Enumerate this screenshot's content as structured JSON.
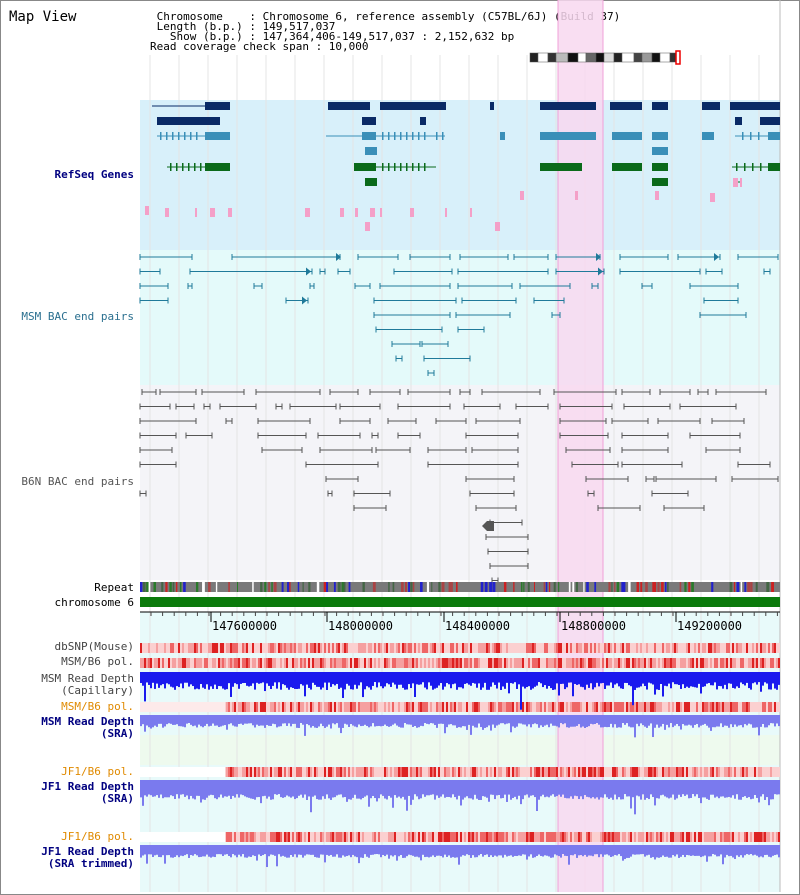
{
  "header": {
    "title": "Map View",
    "info_lines": [
      " Chromosome    : Chromosome 6, reference assembly (C57BL/6J) (Build 37)",
      " Length (b.p.) : 149,517,037",
      "   Show (b.p.) : 147,364,406-149,517,037 : 2,152,632 bp",
      "Read coverage check span : 10,000"
    ]
  },
  "tracks": {
    "refseq": "RefSeq Genes",
    "msm_bac": "MSM BAC end pairs",
    "b6n_bac": "B6N BAC end pairs",
    "repeat": "Repeat",
    "chromosome": "chromosome 6",
    "dbsnp": "dbSNP(Mouse)",
    "msm_b6_pol_1": "MSM/B6 pol.",
    "msm_depth_cap_1": "MSM Read Depth",
    "msm_depth_cap_2": "(Capillary)",
    "msm_b6_pol_2": "MSM/B6 pol.",
    "msm_depth_sra_1": "MSM Read Depth",
    "msm_depth_sra_2": "(SRA)",
    "jf1_b6_pol_1": "JF1/B6 pol.",
    "jf1_depth_sra_1": "JF1 Read Depth",
    "jf1_depth_sra_2": "(SRA)",
    "jf1_b6_pol_2": "JF1/B6 pol.",
    "jf1_depth_trim_1": "JF1 Read Depth",
    "jf1_depth_trim_2": "(SRA trimmed)"
  },
  "axis": {
    "ticks": [
      "147600000",
      "148000000",
      "148400000",
      "148800000",
      "149200000"
    ]
  },
  "colors": {
    "highlight": "#f8d8f0",
    "refseq_bg": "#d8f0fa",
    "msm_bg": "#e4fafa",
    "b6n_bg": "#f4f4f8",
    "gene_dark": "#0a2a66",
    "gene_mid": "#3a8fb8",
    "gene_green": "#0a6a1a",
    "bac_msm": "#1f7a9a",
    "bac_b6n": "#555555",
    "depth_blue": "#1a1aee",
    "depth_lightblue": "#7a7aee",
    "label_navy": "#000080",
    "label_teal": "#2a6f8f",
    "label_gray": "#555555",
    "label_orange": "#e08a00"
  }
}
